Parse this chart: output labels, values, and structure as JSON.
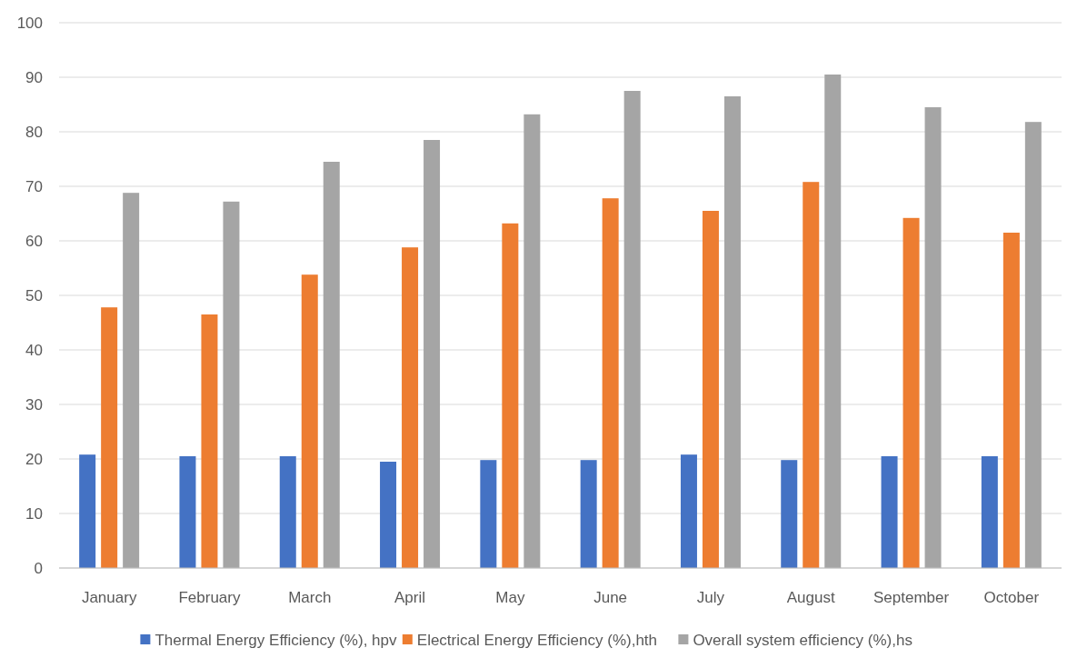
{
  "chart_data": {
    "type": "bar",
    "categories": [
      "January",
      "February",
      "March",
      "April",
      "May",
      "June",
      "July",
      "August",
      "September",
      "October"
    ],
    "series": [
      {
        "name": "Thermal Energy Efficiency (%), hpv",
        "color": "#4472c4",
        "values": [
          20.8,
          20.5,
          20.5,
          19.5,
          19.8,
          19.8,
          20.8,
          19.8,
          20.5,
          20.5
        ]
      },
      {
        "name": "Electrical Energy Efficiency (%),hth",
        "color": "#ed7d31",
        "values": [
          47.8,
          46.5,
          53.8,
          58.8,
          63.2,
          67.8,
          65.5,
          70.8,
          64.2,
          61.5
        ]
      },
      {
        "name": "Overall system efficiency (%),hs",
        "color": "#a5a5a5",
        "values": [
          68.8,
          67.2,
          74.5,
          78.5,
          83.2,
          87.5,
          86.5,
          90.5,
          84.5,
          81.8
        ]
      }
    ],
    "ylim": [
      0,
      100
    ],
    "yticks": [
      0,
      10,
      20,
      30,
      40,
      50,
      60,
      70,
      80,
      90,
      100
    ],
    "grid": "y",
    "legend": "bottom"
  }
}
